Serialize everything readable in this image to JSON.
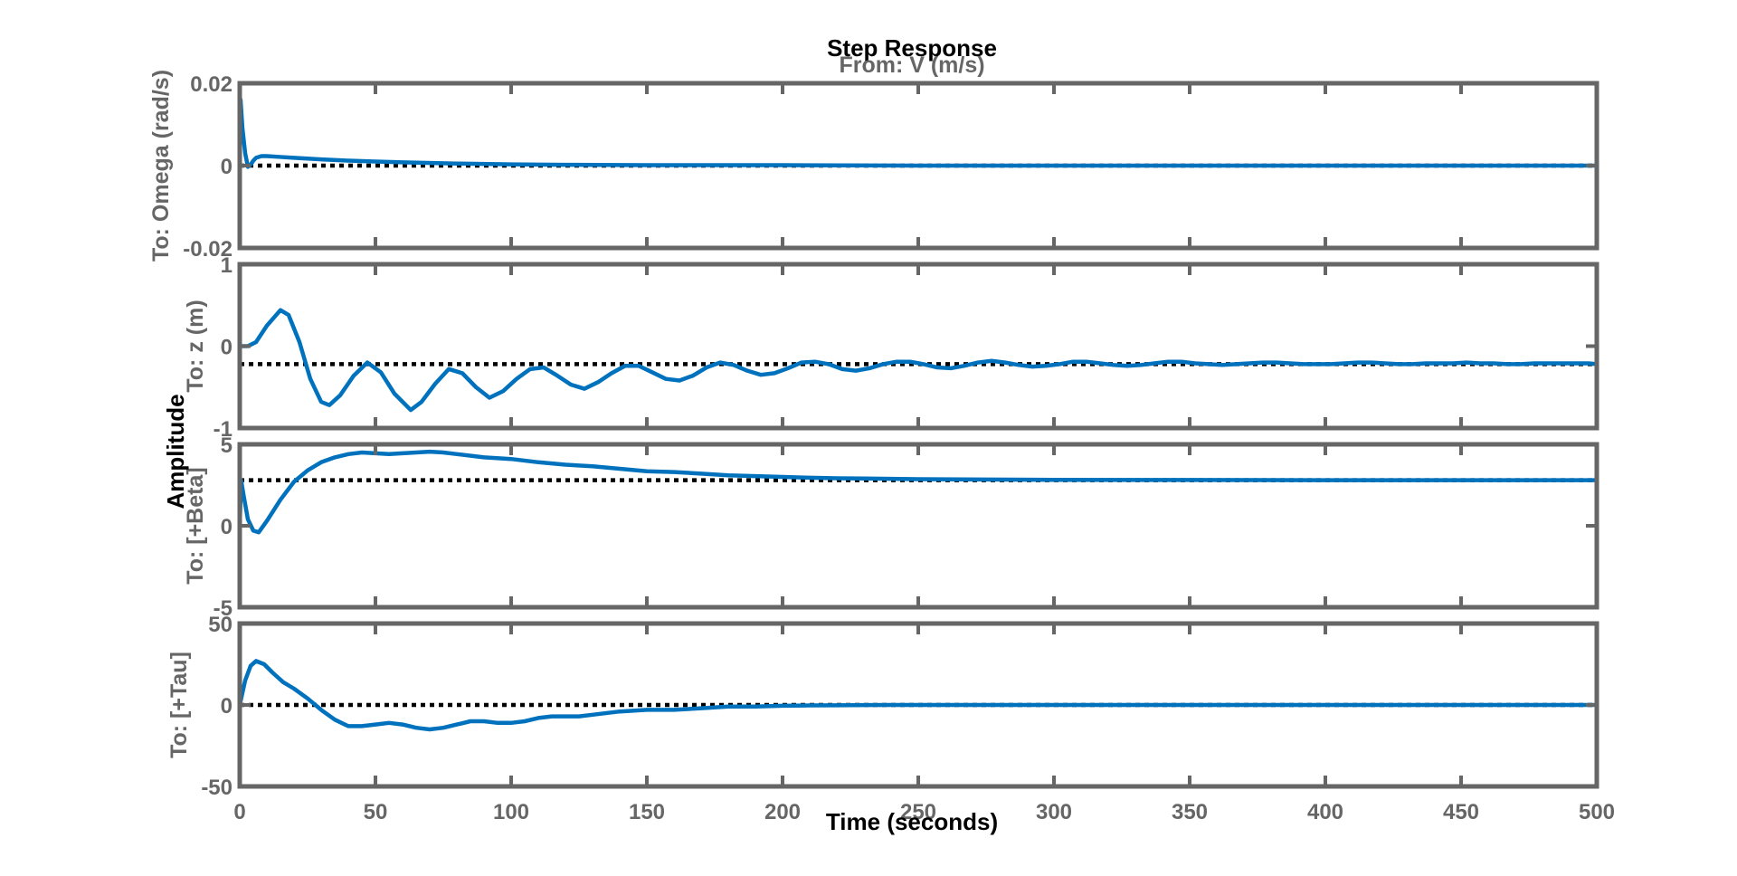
{
  "chart_data": {
    "type": "line",
    "title": "Step Response",
    "subtitle": "From: V (m/s)",
    "xlabel": "Time (seconds)",
    "ylabel": "Amplitude",
    "xlim": [
      0,
      500
    ],
    "xticks": [
      0,
      50,
      100,
      150,
      200,
      250,
      300,
      350,
      400,
      450,
      500
    ],
    "grid": false,
    "line_color": "#0072BD",
    "ref_color": "#000000",
    "axis_color": "#666666",
    "subplots": [
      {
        "ylabel": "To: Omega (rad/s)",
        "ylim": [
          -0.02,
          0.02
        ],
        "yticks": [
          -0.02,
          0,
          0.02
        ],
        "steady_state": 0.0,
        "series": [
          {
            "x": [
              0,
              0.3,
              1,
              2,
              3,
              4,
              5,
              6,
              8,
              10,
              15,
              20,
              25,
              30,
              40,
              50,
              60,
              80,
              100,
              120,
              150,
              200,
              250,
              300,
              350,
              400,
              450,
              500
            ],
            "y": [
              0,
              0.016,
              0.009,
              0.003,
              -0.0003,
              0.0002,
              0.0012,
              0.0019,
              0.0023,
              0.0023,
              0.0021,
              0.0019,
              0.0017,
              0.0015,
              0.0012,
              0.001,
              0.0008,
              0.0005,
              0.0003,
              0.0002,
              0.0001,
              0.0001,
              0.0,
              0.0,
              0.0,
              0.0,
              0.0,
              0.0
            ]
          }
        ]
      },
      {
        "ylabel": "To: z (m)",
        "ylim": [
          -1,
          1
        ],
        "yticks": [
          -1,
          0,
          1
        ],
        "steady_state": -0.22,
        "series": [
          {
            "x": [
              0,
              3,
              6,
              10,
              15,
              18,
              22,
              26,
              30,
              33,
              37,
              42,
              47,
              52,
              57,
              63,
              67,
              72,
              77,
              82,
              87,
              92,
              97,
              102,
              107,
              112,
              117,
              122,
              127,
              132,
              137,
              142,
              147,
              152,
              157,
              162,
              167,
              172,
              177,
              182,
              187,
              192,
              197,
              202,
              207,
              212,
              217,
              222,
              227,
              232,
              237,
              242,
              247,
              252,
              257,
              262,
              267,
              272,
              277,
              282,
              287,
              292,
              297,
              302,
              307,
              312,
              317,
              322,
              327,
              332,
              337,
              342,
              347,
              352,
              357,
              362,
              367,
              372,
              377,
              382,
              387,
              392,
              397,
              402,
              407,
              412,
              417,
              422,
              427,
              432,
              437,
              442,
              447,
              452,
              457,
              462,
              467,
              472,
              477,
              482,
              487,
              492,
              497,
              500
            ],
            "y": [
              0,
              0.0,
              0.05,
              0.25,
              0.44,
              0.38,
              0.05,
              -0.4,
              -0.68,
              -0.72,
              -0.6,
              -0.36,
              -0.2,
              -0.32,
              -0.58,
              -0.78,
              -0.68,
              -0.46,
              -0.28,
              -0.33,
              -0.5,
              -0.63,
              -0.55,
              -0.4,
              -0.28,
              -0.26,
              -0.36,
              -0.47,
              -0.52,
              -0.44,
              -0.33,
              -0.24,
              -0.24,
              -0.32,
              -0.4,
              -0.42,
              -0.36,
              -0.26,
              -0.2,
              -0.23,
              -0.3,
              -0.35,
              -0.33,
              -0.27,
              -0.2,
              -0.19,
              -0.22,
              -0.28,
              -0.3,
              -0.27,
              -0.22,
              -0.19,
              -0.19,
              -0.22,
              -0.26,
              -0.27,
              -0.24,
              -0.2,
              -0.18,
              -0.2,
              -0.23,
              -0.25,
              -0.24,
              -0.22,
              -0.19,
              -0.19,
              -0.21,
              -0.23,
              -0.24,
              -0.23,
              -0.21,
              -0.19,
              -0.19,
              -0.21,
              -0.22,
              -0.23,
              -0.22,
              -0.21,
              -0.2,
              -0.2,
              -0.21,
              -0.22,
              -0.22,
              -0.22,
              -0.21,
              -0.2,
              -0.2,
              -0.21,
              -0.22,
              -0.22,
              -0.21,
              -0.21,
              -0.21,
              -0.2,
              -0.21,
              -0.21,
              -0.22,
              -0.22,
              -0.21,
              -0.21,
              -0.21,
              -0.21,
              -0.21,
              -0.22
            ]
          }
        ]
      },
      {
        "ylabel": "To: [+Beta]",
        "ylim": [
          -5,
          5
        ],
        "yticks": [
          -5,
          0,
          5
        ],
        "steady_state": 2.8,
        "series": [
          {
            "x": [
              0,
              0.5,
              1.5,
              3,
              5,
              7,
              10,
              15,
              20,
              25,
              30,
              35,
              40,
              45,
              50,
              55,
              60,
              65,
              70,
              75,
              80,
              90,
              100,
              110,
              120,
              130,
              140,
              150,
              160,
              170,
              180,
              190,
              200,
              210,
              220,
              230,
              240,
              250,
              275,
              300,
              350,
              400,
              450,
              500
            ],
            "y": [
              0,
              2.8,
              1.8,
              0.4,
              -0.3,
              -0.4,
              0.3,
              1.6,
              2.7,
              3.4,
              3.9,
              4.2,
              4.4,
              4.5,
              4.45,
              4.4,
              4.45,
              4.5,
              4.55,
              4.5,
              4.4,
              4.2,
              4.1,
              3.9,
              3.75,
              3.65,
              3.5,
              3.35,
              3.3,
              3.2,
              3.1,
              3.05,
              3.0,
              2.95,
              2.92,
              2.9,
              2.88,
              2.86,
              2.84,
              2.82,
              2.81,
              2.8,
              2.8,
              2.8
            ]
          }
        ]
      },
      {
        "ylabel": "To: [+Tau]",
        "ylim": [
          -50,
          50
        ],
        "yticks": [
          -50,
          0,
          50
        ],
        "steady_state": 0.0,
        "series": [
          {
            "x": [
              0,
              2,
              4,
              6,
              9,
              12,
              16,
              20,
              25,
              30,
              35,
              40,
              45,
              50,
              55,
              60,
              65,
              70,
              75,
              80,
              85,
              90,
              95,
              100,
              105,
              110,
              115,
              120,
              125,
              130,
              140,
              150,
              160,
              170,
              180,
              190,
              200,
              210,
              220,
              230,
              240,
              250,
              275,
              300,
              350,
              400,
              450,
              500
            ],
            "y": [
              0,
              15,
              24,
              27,
              25,
              20,
              14,
              10,
              4,
              -3,
              -9,
              -13,
              -13,
              -12,
              -11,
              -12,
              -14,
              -15,
              -14,
              -12,
              -10,
              -10,
              -11,
              -11,
              -10,
              -8,
              -7,
              -7,
              -7,
              -6,
              -4,
              -3,
              -3,
              -2,
              -1,
              -1,
              -0.5,
              -0.3,
              -0.2,
              -0.1,
              0,
              0,
              0,
              0,
              0,
              0,
              0,
              0
            ]
          }
        ]
      }
    ]
  }
}
